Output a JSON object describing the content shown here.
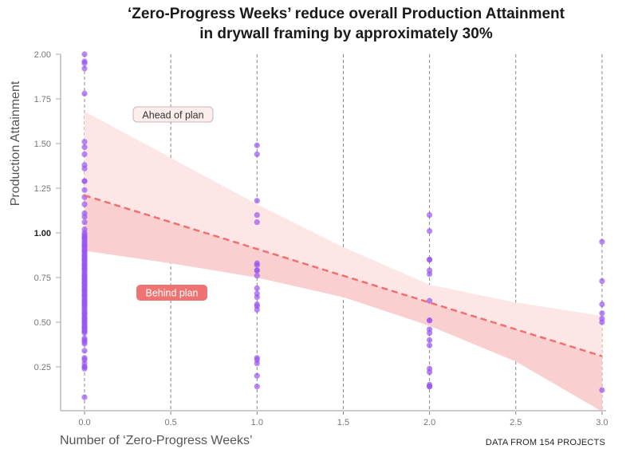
{
  "chart_data": {
    "type": "scatter",
    "title": [
      "‘Zero-Progress Weeks’ reduce overall Production Attainment",
      "in drywall framing by approximately 30%"
    ],
    "xlabel": "Number of ‘Zero-Progress Weeks’",
    "ylabel": "Production Attainment",
    "note": "DATA FROM 154 PROJECTS",
    "xlim": [
      -0.14,
      3.05
    ],
    "ylim": [
      0.0,
      2.0
    ],
    "x_ticks": [
      "0.0",
      "0.5",
      "1.0",
      "1.5",
      "2.0",
      "2.5",
      "3.0"
    ],
    "y_ticks": [
      "2.00",
      "1.75",
      "1.50",
      "1.25",
      "1.00",
      "0.75",
      "0.50",
      "0.25"
    ],
    "y_tick_bold": "1.00",
    "grid": "vertical dashed",
    "colors": {
      "points": "#9a55f2",
      "trend": "#f07070",
      "band_upper": "#fde6e6",
      "band_lower": "#f9cfcf",
      "behind_label": "#f07373"
    },
    "annotations": {
      "ahead": "Ahead of plan",
      "behind": "Behind plan"
    },
    "trend_line": {
      "x": [
        0,
        3
      ],
      "y": [
        1.21,
        0.31
      ]
    },
    "band": {
      "x": [
        0,
        0.5,
        1,
        1.5,
        2,
        2.5,
        3
      ],
      "upper": [
        1.68,
        1.42,
        1.16,
        0.92,
        0.71,
        0.61,
        0.535
      ],
      "lower": [
        0.9,
        0.83,
        0.75,
        0.64,
        0.48,
        0.28,
        0.0
      ]
    },
    "points": [
      {
        "x": 0,
        "y": [
          2.0,
          1.96,
          1.95,
          1.92,
          1.78,
          1.51,
          1.48,
          1.44,
          1.38,
          1.36,
          1.29,
          1.29,
          1.24,
          1.2,
          1.16,
          1.11,
          1.09,
          1.06,
          1.02,
          1.0,
          0.99,
          0.98,
          0.97,
          0.96,
          0.95,
          0.94,
          0.93,
          0.92,
          0.91,
          0.9,
          0.89,
          0.88,
          0.87,
          0.86,
          0.85,
          0.84,
          0.83,
          0.82,
          0.81,
          0.8,
          0.79,
          0.78,
          0.77,
          0.76,
          0.75,
          0.74,
          0.73,
          0.72,
          0.71,
          0.7,
          0.69,
          0.68,
          0.67,
          0.66,
          0.65,
          0.64,
          0.63,
          0.62,
          0.61,
          0.6,
          0.59,
          0.58,
          0.57,
          0.56,
          0.55,
          0.54,
          0.53,
          0.52,
          0.51,
          0.5,
          0.49,
          0.48,
          0.47,
          0.46,
          0.45,
          0.44,
          0.41,
          0.4,
          0.39,
          0.38,
          0.34,
          0.3,
          0.29,
          0.27,
          0.25,
          0.25,
          0.24,
          0.08,
          0.97,
          0.93,
          0.9,
          0.87,
          0.85,
          0.82,
          0.8,
          0.76,
          0.74,
          0.72,
          0.7,
          0.68,
          0.65,
          0.62,
          0.6,
          0.55,
          0.52,
          0.5,
          0.47,
          0.45
        ]
      },
      {
        "x": 1,
        "y": [
          1.49,
          1.44,
          1.18,
          1.1,
          1.06,
          0.83,
          0.82,
          0.79,
          0.79,
          0.76,
          0.69,
          0.66,
          0.64,
          0.6,
          0.59,
          0.57,
          0.3,
          0.29,
          0.27,
          0.2,
          0.14
        ]
      },
      {
        "x": 2,
        "y": [
          1.1,
          1.01,
          0.85,
          0.85,
          0.79,
          0.77,
          0.62,
          0.51,
          0.51,
          0.46,
          0.44,
          0.4,
          0.37,
          0.24,
          0.22,
          0.15,
          0.14,
          0.14
        ]
      },
      {
        "x": 3,
        "y": [
          0.95,
          0.73,
          0.6,
          0.55,
          0.52,
          0.5,
          0.12
        ]
      }
    ]
  }
}
